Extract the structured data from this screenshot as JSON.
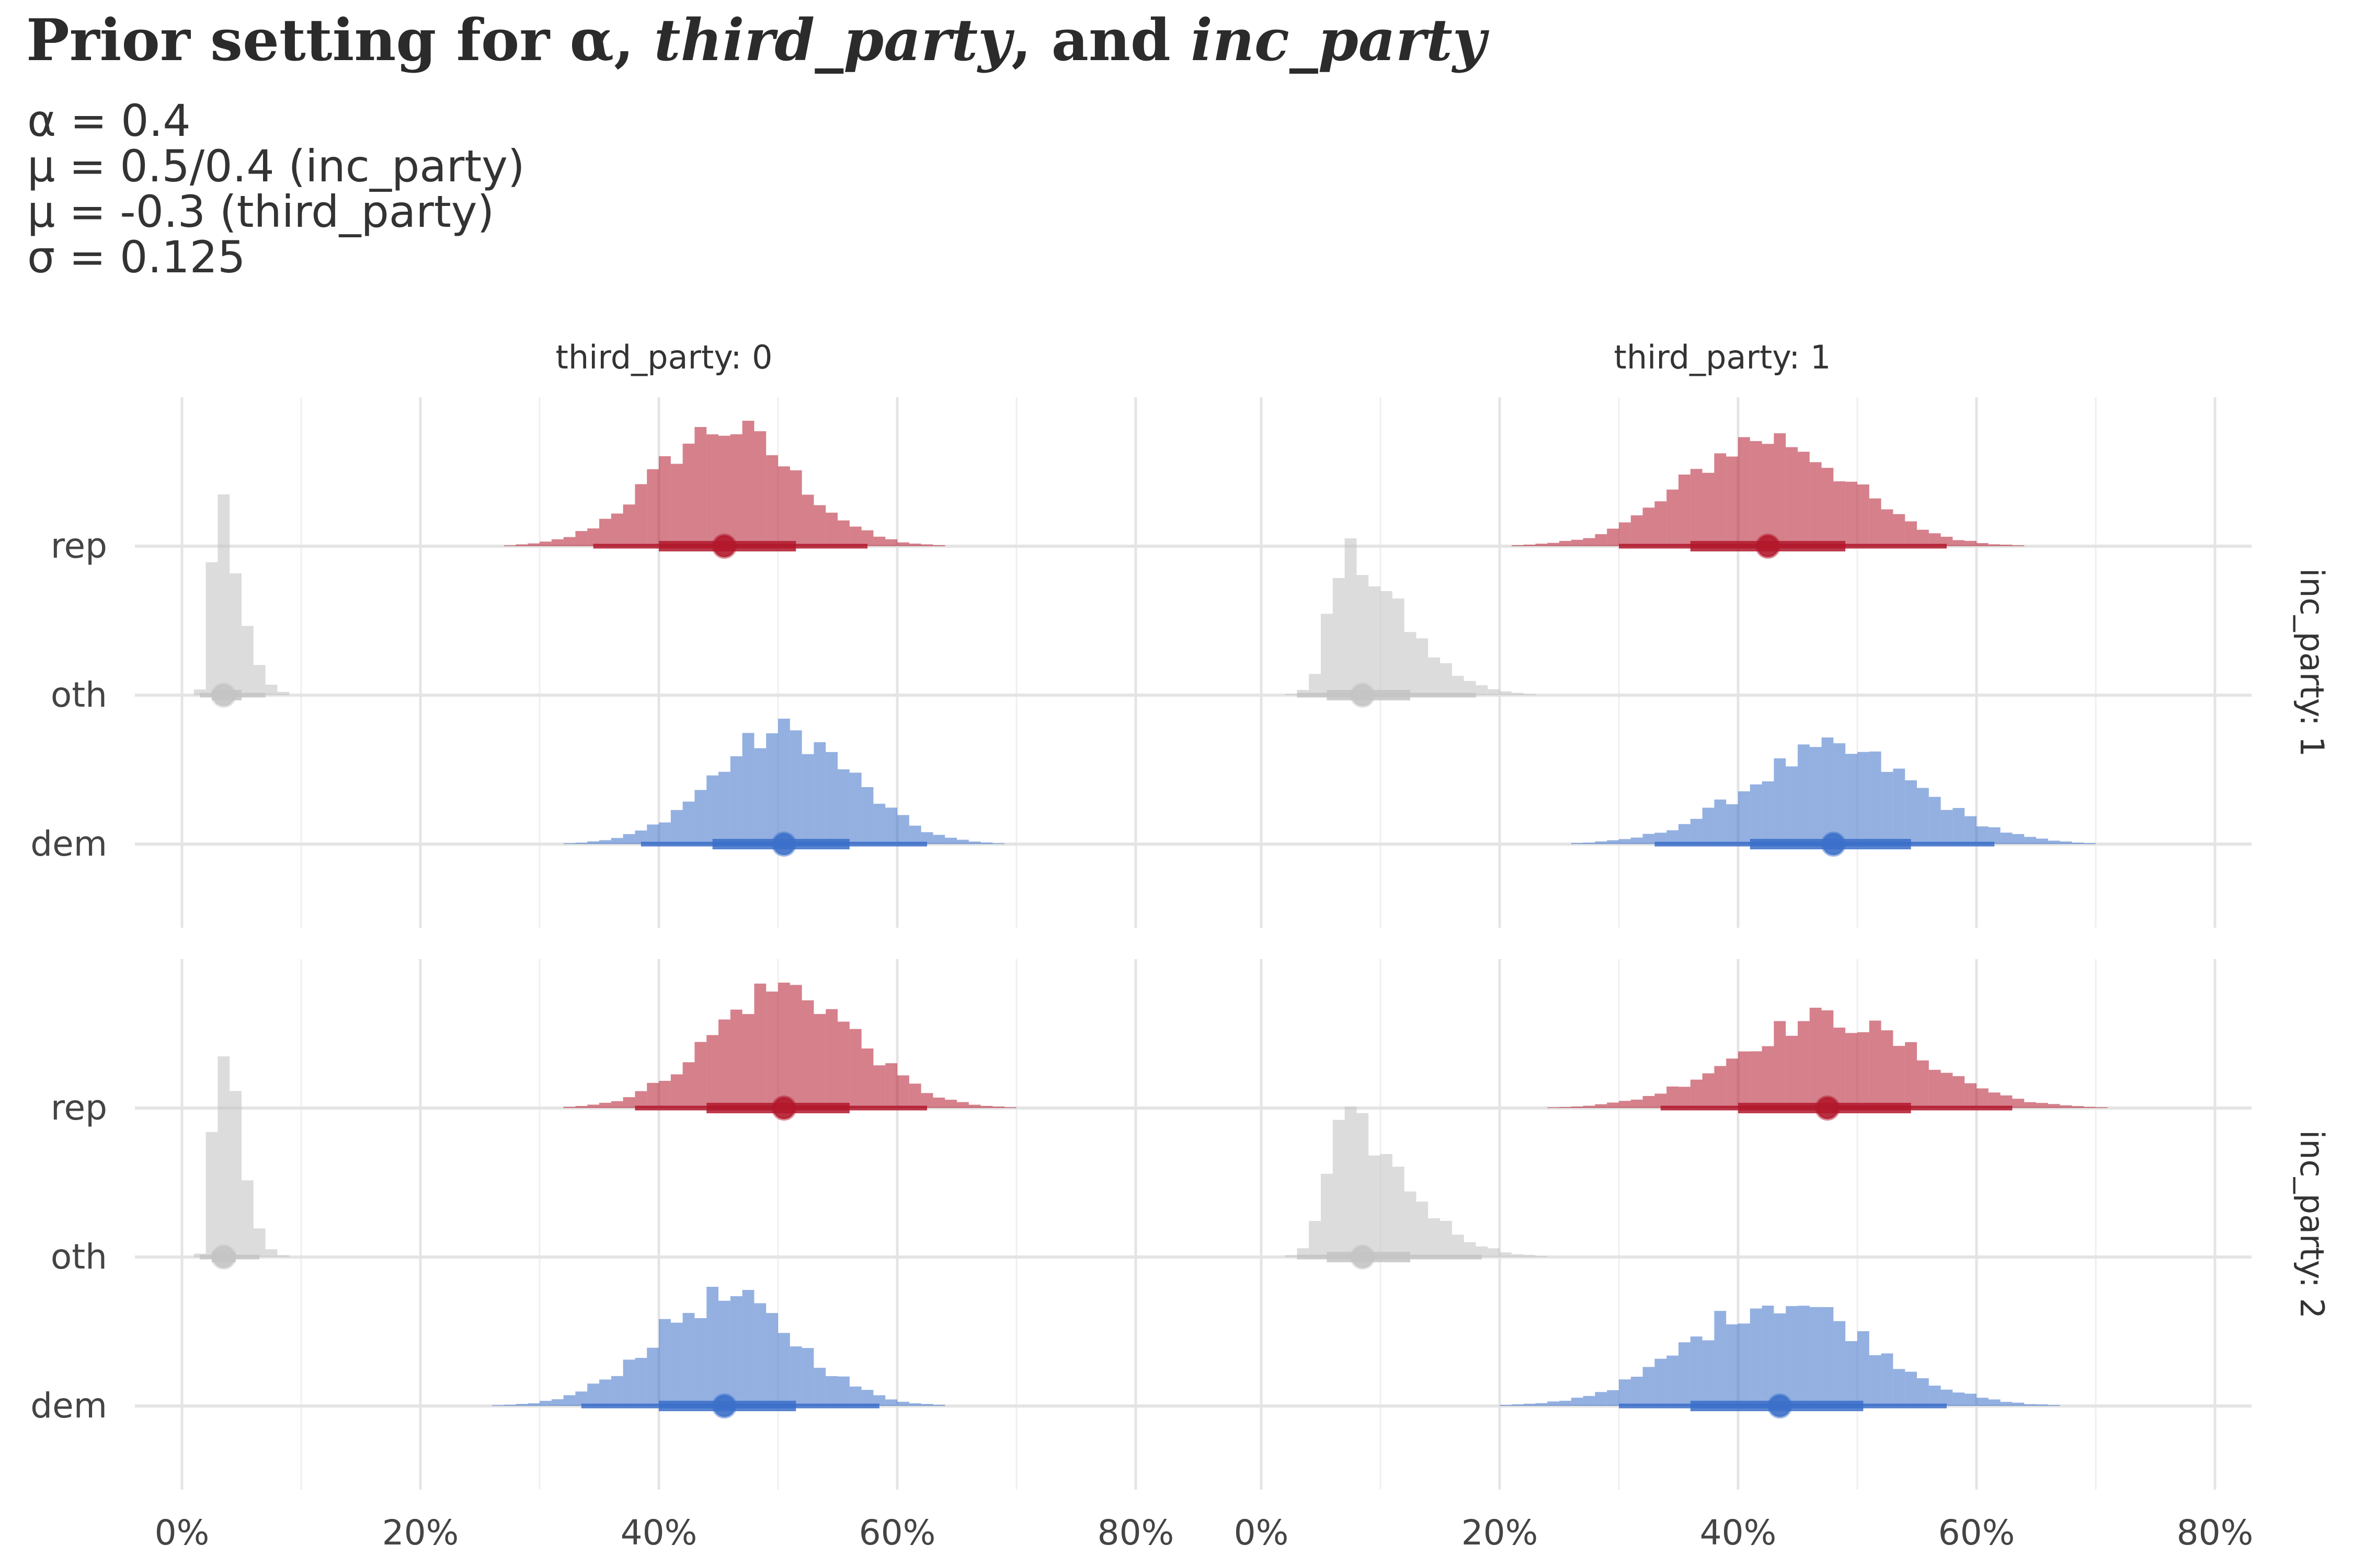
{
  "title": {
    "part1": "Prior setting for ",
    "alpha": "α, ",
    "third_party": "third_party",
    "comma_and": ", and ",
    "inc_party": "inc_party"
  },
  "subtitle": [
    "α = 0.4",
    "μ = 0.5/0.4 (inc_party)",
    "μ = -0.3 (third_party)",
    "σ = 0.125"
  ],
  "colors": {
    "rep": "#b2182b",
    "dem": "#3b6fc9",
    "oth": "#c4c4c4",
    "grid": "#e4e4e4"
  },
  "chart_data": {
    "type": "histogram-interval",
    "facet_columns": [
      "third_party: 0",
      "third_party: 1"
    ],
    "facet_rows": [
      "inc_party: 1",
      "inc_party: 2"
    ],
    "categories": [
      "rep",
      "oth",
      "dem"
    ],
    "x_ticks": [
      "0%",
      "20%",
      "40%",
      "60%",
      "80%"
    ],
    "x_tick_values": [
      0,
      20,
      40,
      60,
      80
    ],
    "xlim": [
      -2,
      83
    ],
    "panels": [
      {
        "column": "third_party: 0",
        "row": "inc_party: 1",
        "series": [
          {
            "category": "rep",
            "point": 45.5,
            "inner": [
              40,
              51.5
            ],
            "outer": [
              34.5,
              57.5
            ],
            "sd": 5.8,
            "peak": 1.0
          },
          {
            "category": "oth",
            "point": 3.5,
            "inner": [
              2.5,
              5
            ],
            "outer": [
              1.5,
              7
            ],
            "sd": 1.6,
            "peak": 3.0
          },
          {
            "category": "dem",
            "point": 50.5,
            "inner": [
              44.5,
              56
            ],
            "outer": [
              38.5,
              62.5
            ],
            "sd": 5.8,
            "peak": 1.0
          }
        ]
      },
      {
        "column": "third_party: 1",
        "row": "inc_party: 1",
        "series": [
          {
            "category": "rep",
            "point": 42.5,
            "inner": [
              36,
              49
            ],
            "outer": [
              30,
              57.5
            ],
            "sd": 6.8,
            "peak": 0.9
          },
          {
            "category": "oth",
            "point": 8.5,
            "inner": [
              5.5,
              12.5
            ],
            "outer": [
              3,
              18
            ],
            "sd": 4.2,
            "peak": 1.25
          },
          {
            "category": "dem",
            "point": 48,
            "inner": [
              41,
              54.5
            ],
            "outer": [
              33,
              61.5
            ],
            "sd": 7.2,
            "peak": 0.85
          }
        ]
      },
      {
        "column": "third_party: 0",
        "row": "inc_party: 2",
        "series": [
          {
            "category": "rep",
            "point": 50.5,
            "inner": [
              44,
              56
            ],
            "outer": [
              38,
              62.5
            ],
            "sd": 6.0,
            "peak": 1.0
          },
          {
            "category": "oth",
            "point": 3.5,
            "inner": [
              2.5,
              4.5
            ],
            "outer": [
              1.5,
              6.5
            ],
            "sd": 1.5,
            "peak": 3.0
          },
          {
            "category": "dem",
            "point": 45.5,
            "inner": [
              40,
              51.5
            ],
            "outer": [
              33.5,
              58.5
            ],
            "sd": 6.0,
            "peak": 0.95
          }
        ]
      },
      {
        "column": "third_party: 1",
        "row": "inc_party: 2",
        "series": [
          {
            "category": "rep",
            "point": 47.5,
            "inner": [
              40,
              54.5
            ],
            "outer": [
              33.5,
              63
            ],
            "sd": 7.5,
            "peak": 0.8
          },
          {
            "category": "oth",
            "point": 8.5,
            "inner": [
              5.5,
              12.5
            ],
            "outer": [
              3,
              18.5
            ],
            "sd": 4.5,
            "peak": 1.2
          },
          {
            "category": "dem",
            "point": 43.5,
            "inner": [
              36,
              50.5
            ],
            "outer": [
              30,
              57.5
            ],
            "sd": 7.5,
            "peak": 0.8
          }
        ]
      }
    ]
  }
}
